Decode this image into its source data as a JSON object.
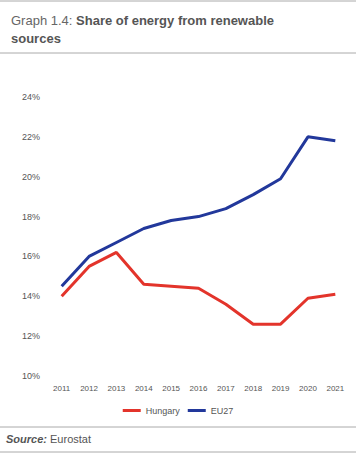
{
  "chart_data": {
    "type": "line",
    "title": "Graph 1.4: Share of energy from renewable sources",
    "source": "Source: Eurostat",
    "categories": [
      "2011",
      "2012",
      "2013",
      "2014",
      "2015",
      "2016",
      "2017",
      "2018",
      "2019",
      "2020",
      "2021"
    ],
    "series": [
      {
        "name": "Hungary",
        "color": "#e3342b",
        "values": [
          14.0,
          15.5,
          16.2,
          14.6,
          14.5,
          14.4,
          13.6,
          12.6,
          12.6,
          13.9,
          14.1
        ]
      },
      {
        "name": "EU27",
        "color": "#22389b",
        "values": [
          14.5,
          16.0,
          16.7,
          17.4,
          17.8,
          18.0,
          18.4,
          19.1,
          19.9,
          22.0,
          21.8
        ]
      }
    ],
    "ylim": [
      10,
      24
    ],
    "yticks": [
      {
        "value": 10,
        "label": "10%"
      },
      {
        "value": 12,
        "label": "12%"
      },
      {
        "value": 14,
        "label": "14%"
      },
      {
        "value": 16,
        "label": "16%"
      },
      {
        "value": 18,
        "label": "18%"
      },
      {
        "value": 20,
        "label": "20%"
      },
      {
        "value": 22,
        "label": "22%"
      },
      {
        "value": 24,
        "label": "24%"
      }
    ],
    "grid": false,
    "legend": "bottom"
  }
}
